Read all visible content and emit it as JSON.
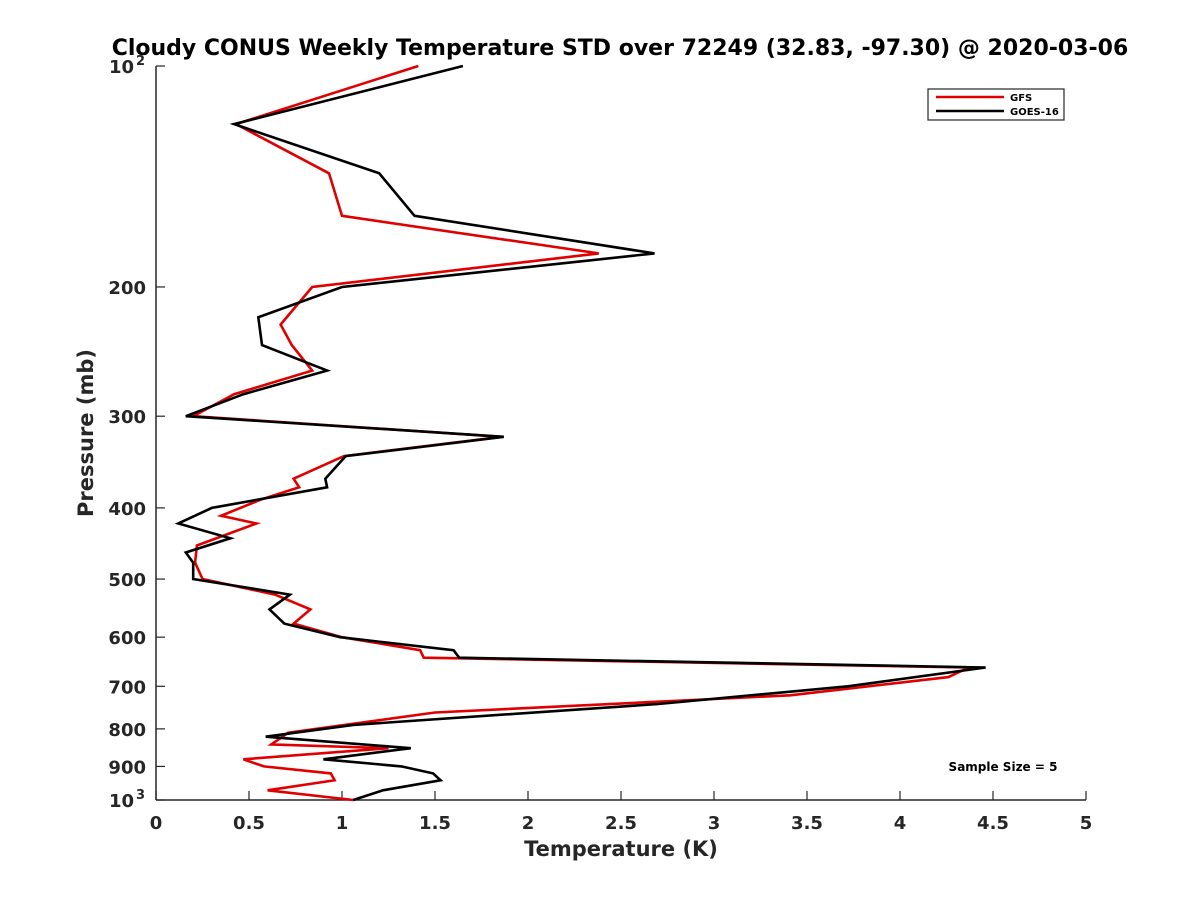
{
  "chart_data": {
    "type": "line",
    "title": "Cloudy CONUS Weekly Temperature STD over 72249 (32.83, -97.30) @ 2020-03-06",
    "xlabel": "Temperature (K)",
    "ylabel": "Pressure (mb)",
    "xlim": [
      0,
      5
    ],
    "ylim": [
      1000,
      100
    ],
    "yscale": "log",
    "x_ticks": [
      0,
      0.5,
      1,
      1.5,
      2,
      2.5,
      3,
      3.5,
      4,
      4.5,
      5
    ],
    "x_tick_labels": [
      "0",
      "0.5",
      "1",
      "1.5",
      "2",
      "2.5",
      "3",
      "3.5",
      "4",
      "4.5",
      "5"
    ],
    "y_ticks": [
      {
        "value": 100,
        "label": "10",
        "sup": "2"
      },
      {
        "value": 200,
        "label": "200",
        "sup": ""
      },
      {
        "value": 300,
        "label": "300",
        "sup": ""
      },
      {
        "value": 400,
        "label": "400",
        "sup": ""
      },
      {
        "value": 500,
        "label": "500",
        "sup": ""
      },
      {
        "value": 600,
        "label": "600",
        "sup": ""
      },
      {
        "value": 700,
        "label": "700",
        "sup": ""
      },
      {
        "value": 800,
        "label": "800",
        "sup": ""
      },
      {
        "value": 900,
        "label": "900",
        "sup": ""
      },
      {
        "value": 1000,
        "label": "10",
        "sup": "3"
      }
    ],
    "grid": false,
    "legend_position": "top-right",
    "annotation": "Sample Size = 5",
    "series": [
      {
        "name": "GFS",
        "color": "#e00000",
        "points": [
          [
            1.41,
            100
          ],
          [
            0.43,
            120
          ],
          [
            0.93,
            140
          ],
          [
            1.0,
            160
          ],
          [
            2.38,
            180
          ],
          [
            0.84,
            200
          ],
          [
            0.67,
            225
          ],
          [
            0.73,
            240
          ],
          [
            0.84,
            260
          ],
          [
            0.42,
            280
          ],
          [
            0.2,
            300
          ],
          [
            1.86,
            320
          ],
          [
            1.01,
            340
          ],
          [
            0.74,
            365
          ],
          [
            0.77,
            375
          ],
          [
            0.56,
            390
          ],
          [
            0.35,
            410
          ],
          [
            0.54,
            420
          ],
          [
            0.22,
            450
          ],
          [
            0.21,
            475
          ],
          [
            0.25,
            500
          ],
          [
            0.64,
            525
          ],
          [
            0.83,
            550
          ],
          [
            0.74,
            575
          ],
          [
            1.0,
            600
          ],
          [
            1.42,
            625
          ],
          [
            1.44,
            640
          ],
          [
            4.37,
            660
          ],
          [
            4.26,
            680
          ],
          [
            3.41,
            720
          ],
          [
            1.5,
            760
          ],
          [
            0.71,
            810
          ],
          [
            0.62,
            840
          ],
          [
            1.25,
            850
          ],
          [
            0.47,
            880
          ],
          [
            0.58,
            900
          ],
          [
            0.94,
            920
          ],
          [
            0.96,
            940
          ],
          [
            0.6,
            970
          ],
          [
            1.06,
            1000
          ]
        ]
      },
      {
        "name": "GOES-16",
        "color": "#000000",
        "points": [
          [
            1.65,
            100
          ],
          [
            0.42,
            120
          ],
          [
            1.2,
            140
          ],
          [
            1.39,
            160
          ],
          [
            2.68,
            180
          ],
          [
            1.0,
            200
          ],
          [
            0.55,
            220
          ],
          [
            0.57,
            240
          ],
          [
            0.92,
            260
          ],
          [
            0.47,
            280
          ],
          [
            0.16,
            300
          ],
          [
            1.87,
            320
          ],
          [
            1.02,
            340
          ],
          [
            0.91,
            365
          ],
          [
            0.92,
            375
          ],
          [
            0.3,
            400
          ],
          [
            0.12,
            420
          ],
          [
            0.4,
            440
          ],
          [
            0.16,
            460
          ],
          [
            0.2,
            475
          ],
          [
            0.2,
            500
          ],
          [
            0.72,
            525
          ],
          [
            0.61,
            550
          ],
          [
            0.69,
            575
          ],
          [
            0.99,
            600
          ],
          [
            1.6,
            625
          ],
          [
            1.63,
            640
          ],
          [
            4.46,
            660
          ],
          [
            3.72,
            700
          ],
          [
            2.7,
            740
          ],
          [
            1.06,
            790
          ],
          [
            0.59,
            820
          ],
          [
            1.37,
            850
          ],
          [
            0.9,
            880
          ],
          [
            1.32,
            900
          ],
          [
            1.49,
            920
          ],
          [
            1.53,
            940
          ],
          [
            1.22,
            970
          ],
          [
            1.06,
            1000
          ]
        ]
      }
    ]
  }
}
